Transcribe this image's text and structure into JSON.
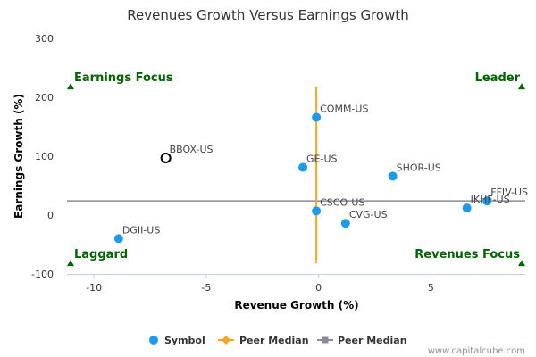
{
  "chart_data": {
    "type": "scatter",
    "title": "Revenues Growth Versus Earnings Growth",
    "xlabel": "Revenue Growth (%)",
    "ylabel": "Earnings Growth (%)",
    "xlim": [
      -11.2,
      9.2
    ],
    "ylim": [
      -100,
      300
    ],
    "x_ticks": [
      -10,
      -5,
      0,
      5
    ],
    "y_ticks": [
      -100,
      0,
      100,
      200,
      300
    ],
    "grid": false,
    "points": [
      {
        "label": "COMM-US",
        "x": -0.1,
        "y": 166,
        "style": "filled"
      },
      {
        "label": "BBOX-US",
        "x": -6.8,
        "y": 97,
        "style": "hollow"
      },
      {
        "label": "GE-US",
        "x": -0.7,
        "y": 81,
        "style": "filled"
      },
      {
        "label": "SHOR-US",
        "x": 3.3,
        "y": 66,
        "style": "filled"
      },
      {
        "label": "FFIV-US",
        "x": 7.5,
        "y": 24,
        "style": "filled"
      },
      {
        "label": "IKHF-US",
        "x": 6.6,
        "y": 12,
        "style": "filled"
      },
      {
        "label": "CSCO-US",
        "x": -0.1,
        "y": 7,
        "style": "filled"
      },
      {
        "label": "CVG-US",
        "x": 1.2,
        "y": -14,
        "style": "filled"
      },
      {
        "label": "DGII-US",
        "x": -8.9,
        "y": -40,
        "style": "filled"
      }
    ],
    "median_x": -0.1,
    "median_x_range": [
      -82,
      218
    ],
    "median_y": 24,
    "quadrants": {
      "top_left": "Earnings Focus",
      "top_right": "Leader",
      "bottom_left": "Laggard",
      "bottom_right": "Revenues Focus"
    },
    "legend": [
      {
        "label": "Symbol",
        "type": "dot"
      },
      {
        "label": "Peer Median",
        "type": "orange-line"
      },
      {
        "label": "Peer Median",
        "type": "gray-line"
      }
    ],
    "legend_position": "bottom-center",
    "colors": {
      "point": "#1a9bec",
      "hollow_point": "#000000",
      "median_x": "#f5a623",
      "median_y": "#8a8a9a",
      "quadrant_text": "#006400",
      "triangle": "#006400"
    }
  },
  "credit": "www.capitalcube.com"
}
